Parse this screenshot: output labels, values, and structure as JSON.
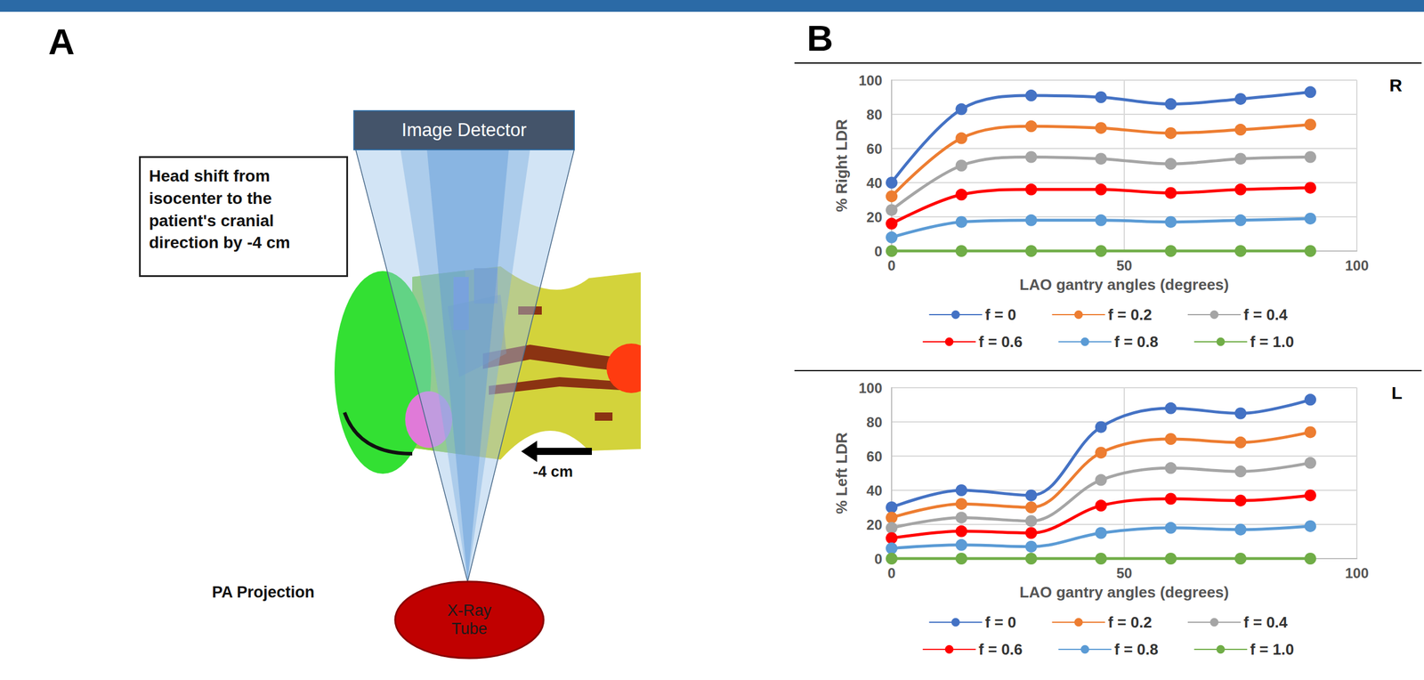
{
  "panel_labels": [
    "A",
    "B"
  ],
  "diagram": {
    "detector": "Image Detector",
    "note": "Head shift from isocenter to the patient's cranial direction by -4 cm",
    "shift": "-4 cm",
    "projection": "PA Projection",
    "source": "X-Ray Tube"
  },
  "chart_data": [
    {
      "type": "line",
      "title": "R",
      "xlabel": "LAO gantry angles (degrees)",
      "ylabel": "% Right LDR",
      "x": [
        0,
        15,
        30,
        45,
        60,
        75,
        90
      ],
      "series": [
        {
          "name": "f = 0",
          "color": "#4472c4",
          "values": [
            40,
            83,
            91,
            90,
            86,
            89,
            93
          ]
        },
        {
          "name": "f = 0.2",
          "color": "#ed7d31",
          "values": [
            32,
            66,
            73,
            72,
            69,
            71,
            74
          ]
        },
        {
          "name": "f = 0.4",
          "color": "#a5a5a5",
          "values": [
            24,
            50,
            55,
            54,
            51,
            54,
            55
          ]
        },
        {
          "name": "f = 0.6",
          "color": "#ff0000",
          "values": [
            16,
            33,
            36,
            36,
            34,
            36,
            37
          ]
        },
        {
          "name": "f = 0.8",
          "color": "#5b9bd5",
          "values": [
            8,
            17,
            18,
            18,
            17,
            18,
            19
          ]
        },
        {
          "name": "f = 1.0",
          "color": "#70ad47",
          "values": [
            0,
            0,
            0,
            0,
            0,
            0,
            0
          ]
        }
      ],
      "xlim": [
        0,
        100
      ],
      "xticks": [
        0,
        50,
        100
      ],
      "ylim": [
        0,
        100
      ],
      "yticks": [
        0,
        20,
        40,
        60,
        80,
        100
      ],
      "grid": true,
      "legend": "bottom",
      "marker": "circle",
      "line_style": "solid"
    },
    {
      "type": "line",
      "title": "L",
      "xlabel": "LAO gantry angles (degrees)",
      "ylabel": "% Left LDR",
      "x": [
        0,
        15,
        30,
        45,
        60,
        75,
        90
      ],
      "series": [
        {
          "name": "f = 0",
          "color": "#4472c4",
          "values": [
            30,
            40,
            37,
            77,
            88,
            85,
            93
          ]
        },
        {
          "name": "f = 0.2",
          "color": "#ed7d31",
          "values": [
            24,
            32,
            30,
            62,
            70,
            68,
            74
          ]
        },
        {
          "name": "f = 0.4",
          "color": "#a5a5a5",
          "values": [
            18,
            24,
            22,
            46,
            53,
            51,
            56
          ]
        },
        {
          "name": "f = 0.6",
          "color": "#ff0000",
          "values": [
            12,
            16,
            15,
            31,
            35,
            34,
            37
          ]
        },
        {
          "name": "f = 0.8",
          "color": "#5b9bd5",
          "values": [
            6,
            8,
            7,
            15,
            18,
            17,
            19
          ]
        },
        {
          "name": "f = 1.0",
          "color": "#70ad47",
          "values": [
            0,
            0,
            0,
            0,
            0,
            0,
            0
          ]
        }
      ],
      "xlim": [
        0,
        100
      ],
      "xticks": [
        0,
        50,
        100
      ],
      "ylim": [
        0,
        100
      ],
      "yticks": [
        0,
        20,
        40,
        60,
        80,
        100
      ],
      "grid": true,
      "legend": "bottom",
      "marker": "circle",
      "line_style": "solid"
    }
  ]
}
